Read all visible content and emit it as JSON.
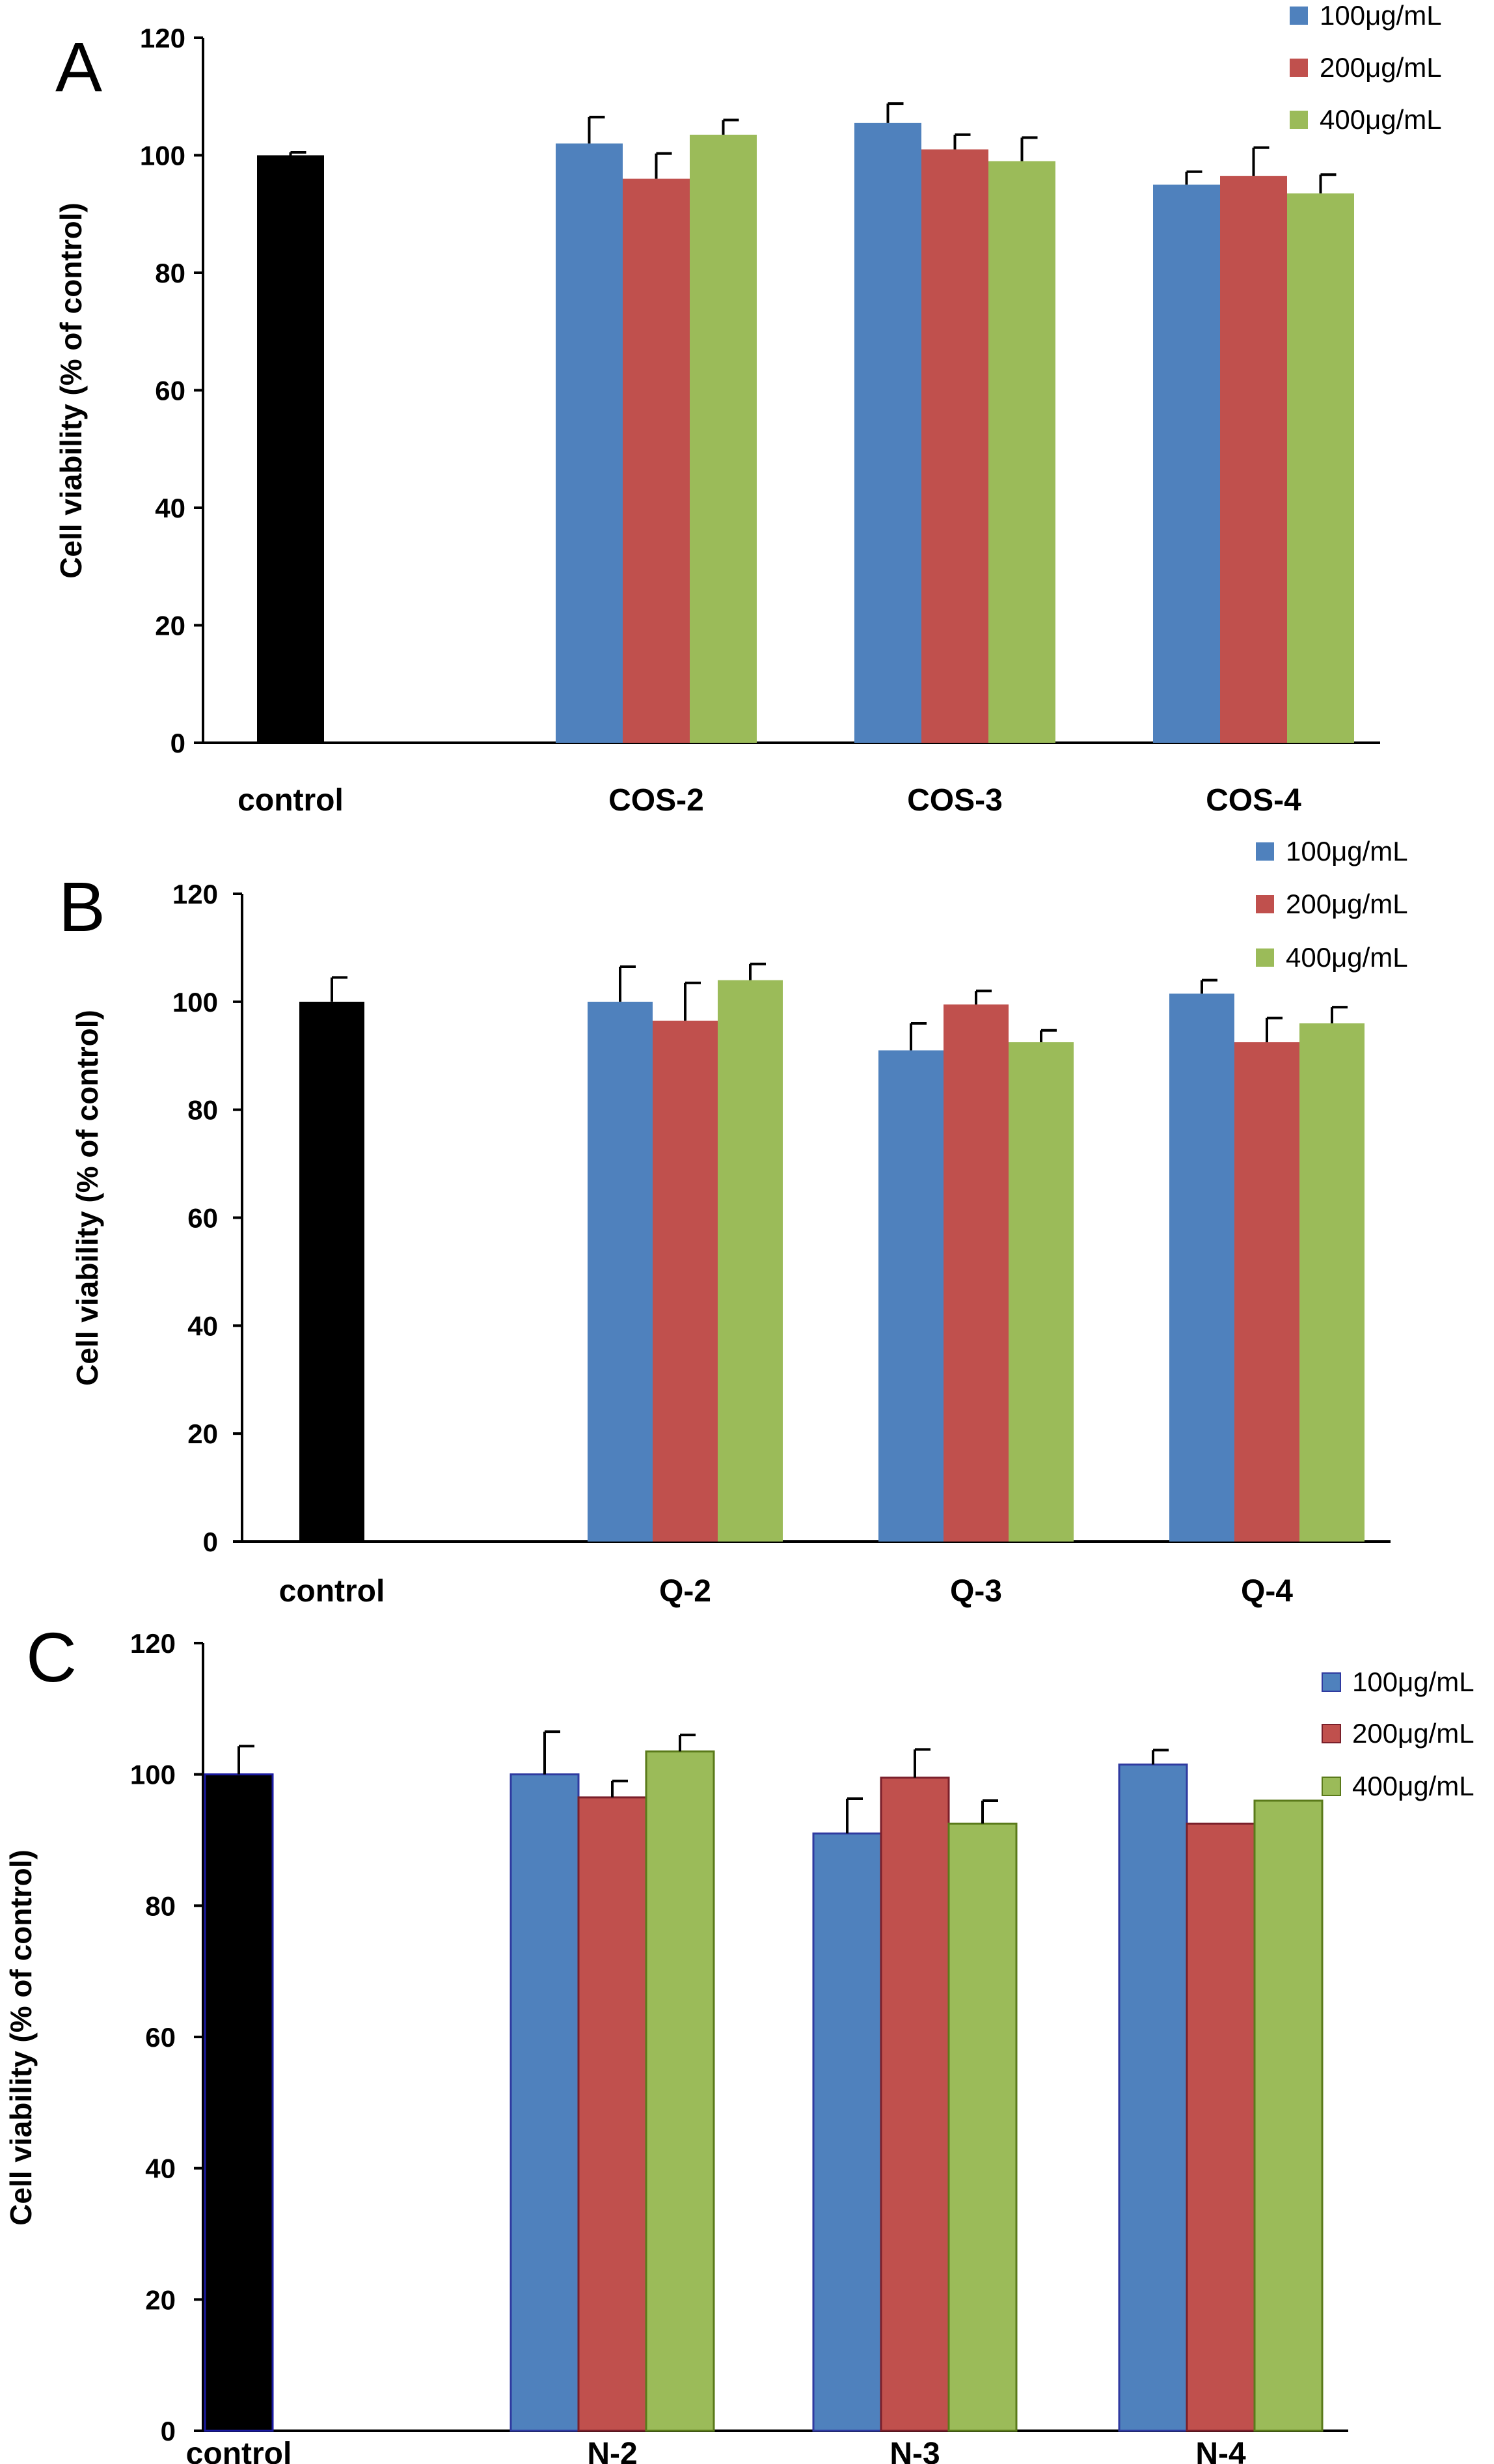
{
  "colors": {
    "control": "#000000",
    "series_100": "#4f81bd",
    "series_200": "#c0504d",
    "series_400": "#9bbb59"
  },
  "chart_data": [
    {
      "panel": "A",
      "type": "bar",
      "ylabel": "Cell viability (% of control)",
      "ylim": [
        0,
        120
      ],
      "yticks": [
        0,
        20,
        40,
        60,
        80,
        100,
        120
      ],
      "control": {
        "label": "control",
        "value": 100,
        "error": 0.5
      },
      "categories": [
        "COS-2",
        "COS-3",
        "COS-4"
      ],
      "series": [
        {
          "name": "100μg/mL",
          "values": [
            102,
            105.5,
            95
          ],
          "errors": [
            4.5,
            3.3,
            2.2
          ]
        },
        {
          "name": "200μg/mL",
          "values": [
            96,
            101,
            96.5
          ],
          "errors": [
            4.3,
            2.5,
            4.8
          ]
        },
        {
          "name": "400μg/mL",
          "values": [
            103.5,
            99,
            93.5
          ],
          "errors": [
            2.5,
            4,
            3.2
          ]
        }
      ],
      "legend": "top-right"
    },
    {
      "panel": "B",
      "type": "bar",
      "ylabel": "Cell viability (% of control)",
      "ylim": [
        0,
        120
      ],
      "yticks": [
        0,
        20,
        40,
        60,
        80,
        100,
        120
      ],
      "control": {
        "label": "control",
        "value": 100,
        "error": 4.5
      },
      "categories": [
        "Q-2",
        "Q-3",
        "Q-4"
      ],
      "series": [
        {
          "name": "100μg/mL",
          "values": [
            100,
            91,
            101.5
          ],
          "errors": [
            6.5,
            5,
            2.5
          ]
        },
        {
          "name": "200μg/mL",
          "values": [
            96.5,
            99.5,
            92.5
          ],
          "errors": [
            7,
            2.5,
            4.5
          ]
        },
        {
          "name": "400μg/mL",
          "values": [
            104,
            92.5,
            96
          ],
          "errors": [
            3,
            2.2,
            3
          ]
        }
      ],
      "legend": "top-right"
    },
    {
      "panel": "C",
      "type": "bar",
      "ylabel": "Cell viability (% of control)",
      "ylim": [
        0,
        120
      ],
      "yticks": [
        0,
        20,
        40,
        60,
        80,
        100,
        120
      ],
      "control": {
        "label": "control",
        "value": 100,
        "error": 4.3
      },
      "categories": [
        "N-2",
        "N-3",
        "N-4"
      ],
      "series": [
        {
          "name": "100μg/mL",
          "values": [
            100,
            91,
            101.5
          ],
          "errors": [
            6.5,
            5.3,
            2.2
          ]
        },
        {
          "name": "200μg/mL",
          "values": [
            96.5,
            99.5,
            92.5
          ],
          "errors": [
            2.5,
            4.3,
            0
          ]
        },
        {
          "name": "400μg/mL",
          "values": [
            103.5,
            92.5,
            96
          ],
          "errors": [
            2.5,
            3.5,
            0
          ]
        }
      ],
      "legend": "top-right"
    }
  ]
}
